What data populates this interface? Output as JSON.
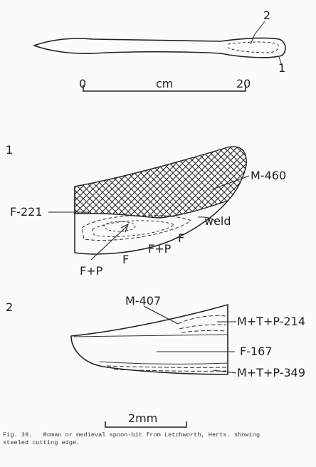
{
  "overview": {
    "callout_2": "2",
    "callout_1": "1",
    "scale_start": "0",
    "scale_unit": "cm",
    "scale_end": "20"
  },
  "section1": {
    "number": "1",
    "label_m": "M-460",
    "label_f221": "F-221",
    "label_weld": "weld",
    "label_f_right": "F",
    "label_fp_mid": "F+P",
    "label_f_mid": "F",
    "label_fp_left": "F+P"
  },
  "section2": {
    "number": "2",
    "label_m407": "M-407",
    "label_mtp214": "M+T+P-214",
    "label_f167": "F-167",
    "label_mtp349": "M+T+P-349"
  },
  "scale_bar_2": {
    "label": "2mm"
  },
  "caption": {
    "text": "Fig. 39.   Roman or medieval spoon-bit from Letchworth, Herts. showing\nsteeled cutting edge."
  }
}
